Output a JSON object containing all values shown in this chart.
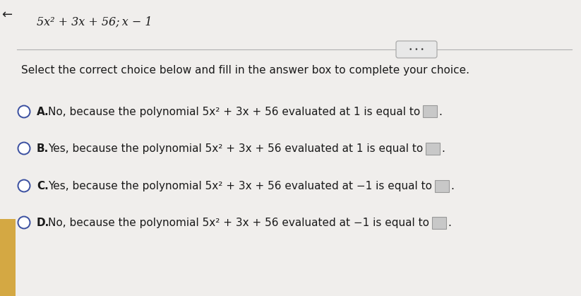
{
  "title_text": "5x² + 3x + 56; x − 1",
  "instruction": "Select the correct choice below and fill in the answer box to complete your choice.",
  "choices": [
    {
      "label": "A.",
      "text": "No, because the polynomial 5x² + 3x + 56 evaluated at 1 is equal to"
    },
    {
      "label": "B.",
      "text": "Yes, because the polynomial 5x² + 3x + 56 evaluated at 1 is equal to"
    },
    {
      "label": "C.",
      "text": "Yes, because the polynomial 5x² + 3x + 56 evaluated at −1 is equal to"
    },
    {
      "label": "D.",
      "text": "No, because the polynomial 5x² + 3x + 56 evaluated at −1 is equal to"
    }
  ],
  "main_bg": "#f0eeec",
  "left_stripe_color": "#d4a843",
  "separator_line_color": "#b0b0b0",
  "text_color": "#1a1a1a",
  "circle_edge_color": "#3a4fa0",
  "box_fill": "#c8c8c8",
  "box_edge": "#999999",
  "dots_fill": "#e8e8e8",
  "dots_edge": "#aaaaaa",
  "title_font_size": 11.5,
  "instruction_font_size": 11,
  "choice_font_size": 11,
  "label_font_size": 11
}
